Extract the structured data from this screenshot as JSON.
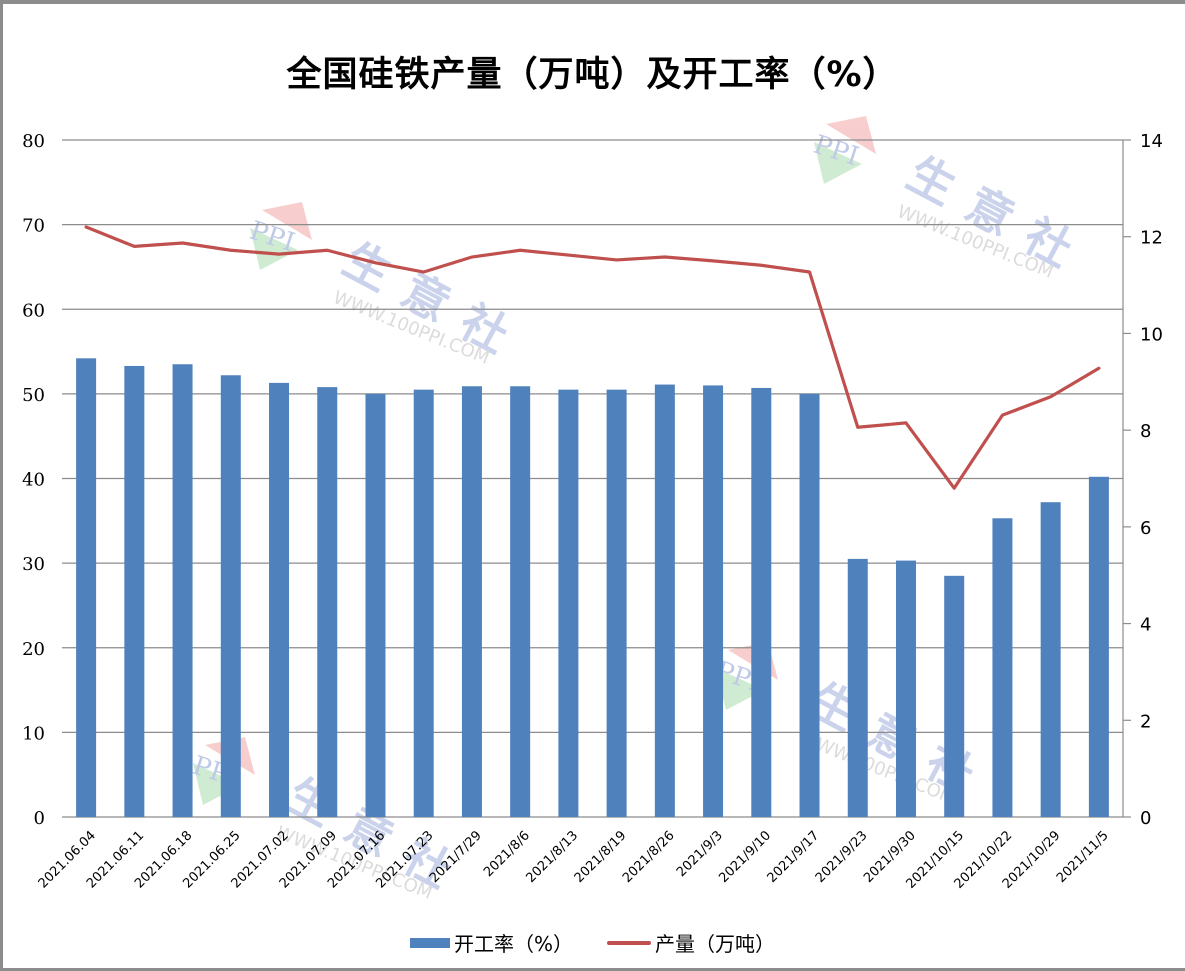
{
  "title": "全国硅铁产量（万吨）及开工率（%）",
  "colors": {
    "bar": "#4f81bd",
    "line": "#c0504d",
    "grid": "#8c8c8c",
    "frame": "#8c8c8c"
  },
  "legend": {
    "bar_label": "开工率（%）",
    "line_label": "产量（万吨）"
  },
  "watermark": {
    "logo_text": "PPI",
    "brand": "生意社",
    "url": "WWW.100PPI.COM"
  },
  "chart_data": {
    "type": "bar+line",
    "title": "全国硅铁产量（万吨）及开工率（%）",
    "categories": [
      "2021.06.04",
      "2021.06.11",
      "2021.06.18",
      "2021.06.25",
      "2021.07.02",
      "2021.07.09",
      "2021.07.16",
      "2021.07.23",
      "2021/7/29",
      "2021/8/6",
      "2021/8/13",
      "2021/8/19",
      "2021/8/26",
      "2021/9/3",
      "2021/9/10",
      "2021/9/17",
      "2021/9/23",
      "2021/9/30",
      "2021/10/15",
      "2021/10/22",
      "2021/10/29",
      "2021/11/5"
    ],
    "series": [
      {
        "name": "开工率（%）",
        "type": "bar",
        "axis": "left",
        "values": [
          54.2,
          53.3,
          53.5,
          52.2,
          51.3,
          50.8,
          50.0,
          50.5,
          50.9,
          50.9,
          50.5,
          50.5,
          51.1,
          51.0,
          50.7,
          50.0,
          30.5,
          30.3,
          28.5,
          35.3,
          37.2,
          40.2
        ]
      },
      {
        "name": "产量（万吨）",
        "type": "line",
        "axis": "right",
        "values": [
          12.2,
          11.8,
          11.87,
          11.72,
          11.64,
          11.72,
          11.46,
          11.27,
          11.58,
          11.72,
          11.62,
          11.52,
          11.58,
          11.5,
          11.41,
          11.27,
          8.06,
          8.15,
          6.8,
          8.31,
          8.69,
          9.28
        ]
      }
    ],
    "y_left": {
      "min": 0,
      "max": 80,
      "ticks": [
        0,
        10,
        20,
        30,
        40,
        50,
        60,
        70,
        80
      ]
    },
    "y_right": {
      "min": 0,
      "max": 14,
      "ticks": [
        0,
        2,
        4,
        6,
        8,
        10,
        12,
        14
      ]
    },
    "xlabel": "",
    "ylabel_left": "",
    "ylabel_right": "",
    "grid": true,
    "legend_position": "bottom"
  }
}
